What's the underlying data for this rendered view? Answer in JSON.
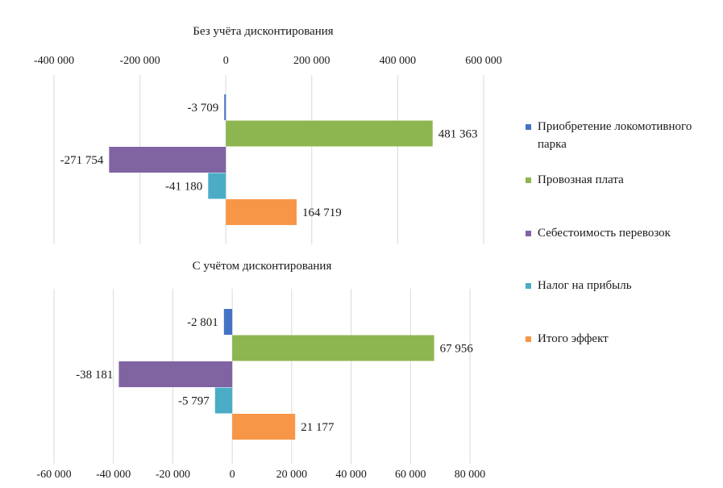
{
  "chart_data": [
    {
      "type": "bar",
      "orientation": "horizontal",
      "title": "Без учёта дисконтирования",
      "axis_position": "top",
      "xlim": [
        -400000,
        600000
      ],
      "ticks": [
        -400000,
        -200000,
        0,
        200000,
        400000,
        600000
      ],
      "tick_labels": [
        "-400 000",
        "-200 000",
        "0",
        "200 000",
        "400 000",
        "600 000"
      ],
      "categories": [
        "Приобретение локомотивного парка",
        "Провозная плата",
        "Себестоимость перевозок",
        "Налог на прибыль",
        "Итого эффект"
      ],
      "values": [
        -3709,
        481363,
        -271754,
        -41180,
        164719
      ],
      "value_labels": [
        "-3 709",
        "481 363",
        "-271 754",
        "-41 180",
        "164 719"
      ],
      "colors": [
        "#4472C4",
        "#8DB650",
        "#8064A2",
        "#4BACC6",
        "#F79646"
      ],
      "grid": true
    },
    {
      "type": "bar",
      "orientation": "horizontal",
      "title": "С учётом дисконтирования",
      "axis_position": "bottom",
      "xlim": [
        -60000,
        80000
      ],
      "ticks": [
        -60000,
        -40000,
        -20000,
        0,
        20000,
        40000,
        60000,
        80000
      ],
      "tick_labels": [
        "-60 000",
        "-40 000",
        "-20 000",
        "0",
        "20 000",
        "40 000",
        "60 000",
        "80 000"
      ],
      "categories": [
        "Приобретение локомотивного парка",
        "Провозная плата",
        "Себестоимость перевозок",
        "Налог на прибыль",
        "Итого эффект"
      ],
      "values": [
        -2801,
        67956,
        -38181,
        -5797,
        21177
      ],
      "value_labels": [
        "-2 801",
        "67 956",
        "-38 181",
        "-5 797",
        "21 177"
      ],
      "colors": [
        "#4472C4",
        "#8DB650",
        "#8064A2",
        "#4BACC6",
        "#F79646"
      ],
      "grid": true
    }
  ],
  "legend": {
    "placement": "right",
    "items": [
      {
        "line1": "Приобретение локомотивного",
        "line2": "парка",
        "color": "#4472C4"
      },
      {
        "line1": "Провозная плата",
        "line2": "",
        "color": "#8DB650"
      },
      {
        "line1": "Себестоимость перевозок",
        "line2": "",
        "color": "#8064A2"
      },
      {
        "line1": "Налог на прибыль",
        "line2": "",
        "color": "#4BACC6"
      },
      {
        "line1": "Итого эффект",
        "line2": "",
        "color": "#F79646"
      }
    ]
  }
}
